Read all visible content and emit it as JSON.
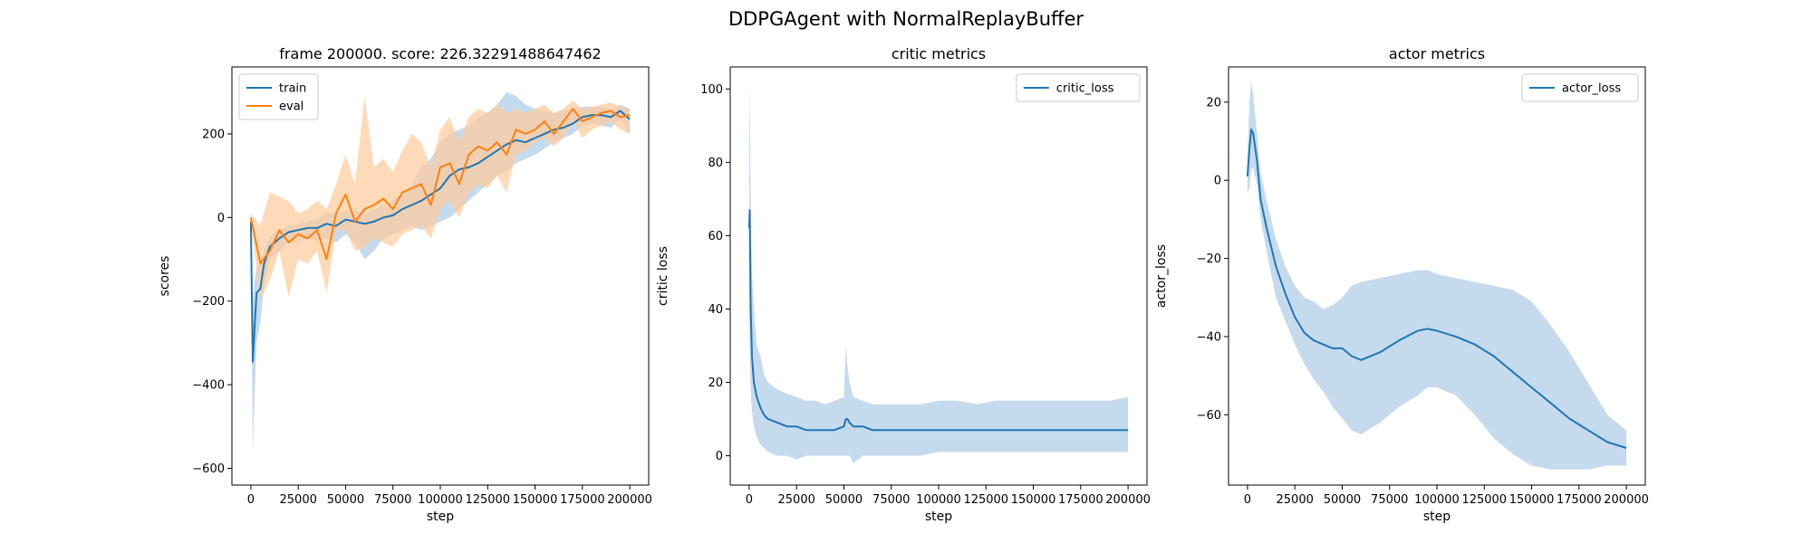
{
  "figure": {
    "title": "DDPGAgent with NormalReplayBuffer"
  },
  "colors": {
    "blue": "#1f77b4",
    "orange": "#ff7f0e",
    "blue_band": "#aecbe6",
    "orange_band": "#ffcb9a"
  },
  "chart_data": [
    {
      "type": "line",
      "title": "frame 200000. score: 226.32291488647462",
      "xlabel": "step",
      "ylabel": "scores",
      "xlim": [
        -10000,
        210000
      ],
      "ylim": [
        -640,
        360
      ],
      "xticks": [
        0,
        25000,
        50000,
        75000,
        100000,
        125000,
        150000,
        175000,
        200000
      ],
      "xtick_labels": [
        "0",
        "25000",
        "50000",
        "75000",
        "100000",
        "125000",
        "150000",
        "175000",
        "200000"
      ],
      "yticks": [
        -600,
        -400,
        -200,
        0,
        200
      ],
      "ytick_labels": [
        "−600",
        "−400",
        "−200",
        "0",
        "200"
      ],
      "legend": "top-left",
      "grid": false,
      "series": [
        {
          "name": "train",
          "color": "#1f77b4",
          "band_color": "#aecbe6",
          "x": [
            0,
            1000,
            2000,
            3000,
            5000,
            7000,
            10000,
            15000,
            20000,
            25000,
            30000,
            35000,
            40000,
            45000,
            50000,
            55000,
            60000,
            65000,
            70000,
            75000,
            80000,
            85000,
            90000,
            95000,
            100000,
            105000,
            110000,
            115000,
            120000,
            125000,
            130000,
            135000,
            140000,
            145000,
            150000,
            155000,
            160000,
            165000,
            170000,
            175000,
            180000,
            185000,
            190000,
            195000,
            200000
          ],
          "y": [
            -10,
            -345,
            -260,
            -180,
            -170,
            -110,
            -70,
            -50,
            -35,
            -30,
            -25,
            -25,
            -15,
            -20,
            -5,
            -10,
            -15,
            -10,
            0,
            5,
            20,
            30,
            40,
            55,
            70,
            100,
            115,
            120,
            130,
            145,
            160,
            175,
            185,
            180,
            190,
            200,
            210,
            215,
            225,
            240,
            245,
            245,
            240,
            255,
            235
          ],
          "upper": [
            10,
            -200,
            -150,
            -120,
            -110,
            -80,
            -45,
            -30,
            -20,
            -15,
            -10,
            -5,
            10,
            10,
            15,
            15,
            10,
            20,
            30,
            40,
            60,
            80,
            120,
            140,
            180,
            200,
            210,
            220,
            240,
            250,
            270,
            300,
            290,
            270,
            260,
            255,
            250,
            255,
            260,
            265,
            265,
            265,
            260,
            270,
            260
          ],
          "lower": [
            -30,
            -560,
            -420,
            -300,
            -250,
            -160,
            -100,
            -80,
            -60,
            -55,
            -50,
            -55,
            -50,
            -60,
            -40,
            -60,
            -100,
            -80,
            -50,
            -40,
            -30,
            -20,
            -30,
            -20,
            -10,
            0,
            20,
            40,
            60,
            80,
            100,
            110,
            130,
            140,
            150,
            165,
            180,
            190,
            200,
            220,
            225,
            220,
            215,
            235,
            200
          ]
        },
        {
          "name": "eval",
          "color": "#ff7f0e",
          "band_color": "#ffcb9a",
          "x": [
            0,
            5000,
            10000,
            15000,
            20000,
            25000,
            30000,
            35000,
            40000,
            45000,
            50000,
            55000,
            60000,
            65000,
            70000,
            75000,
            80000,
            85000,
            90000,
            95000,
            100000,
            105000,
            110000,
            115000,
            120000,
            125000,
            130000,
            135000,
            140000,
            145000,
            150000,
            155000,
            160000,
            165000,
            170000,
            175000,
            180000,
            185000,
            190000,
            195000,
            200000
          ],
          "y": [
            0,
            -110,
            -80,
            -30,
            -60,
            -40,
            -50,
            -30,
            -100,
            10,
            55,
            -10,
            20,
            30,
            45,
            20,
            60,
            70,
            80,
            30,
            120,
            130,
            80,
            150,
            170,
            160,
            180,
            150,
            210,
            200,
            210,
            230,
            200,
            230,
            260,
            230,
            240,
            250,
            255,
            240,
            245
          ],
          "upper": [
            10,
            -20,
            60,
            50,
            40,
            10,
            20,
            40,
            20,
            80,
            150,
            80,
            290,
            120,
            140,
            110,
            160,
            200,
            180,
            120,
            210,
            240,
            180,
            240,
            260,
            250,
            270,
            250,
            260,
            250,
            260,
            270,
            250,
            260,
            280,
            260,
            265,
            270,
            275,
            265,
            260
          ],
          "lower": [
            -10,
            -200,
            -150,
            -80,
            -190,
            -100,
            -110,
            -80,
            -180,
            -30,
            -30,
            -80,
            -70,
            -50,
            -60,
            -70,
            -40,
            -30,
            -20,
            -50,
            20,
            40,
            0,
            60,
            80,
            70,
            100,
            60,
            150,
            160,
            180,
            190,
            170,
            190,
            230,
            190,
            210,
            220,
            230,
            210,
            200
          ]
        }
      ]
    },
    {
      "type": "line",
      "title": "critic metrics",
      "xlabel": "step",
      "ylabel": "critic loss",
      "xlim": [
        -10000,
        210000
      ],
      "ylim": [
        -8,
        106
      ],
      "xticks": [
        0,
        25000,
        50000,
        75000,
        100000,
        125000,
        150000,
        175000,
        200000
      ],
      "xtick_labels": [
        "0",
        "25000",
        "50000",
        "75000",
        "100000",
        "125000",
        "150000",
        "175000",
        "200000"
      ],
      "yticks": [
        0,
        20,
        40,
        60,
        80,
        100
      ],
      "ytick_labels": [
        "0",
        "20",
        "40",
        "60",
        "80",
        "100"
      ],
      "legend": "top-right",
      "grid": false,
      "series": [
        {
          "name": "critic_loss",
          "color": "#1f77b4",
          "band_color": "#aecbe6",
          "x": [
            0,
            300,
            800,
            1500,
            2500,
            4000,
            6000,
            8000,
            10000,
            15000,
            20000,
            25000,
            30000,
            35000,
            40000,
            45000,
            50000,
            51000,
            52000,
            53000,
            55000,
            60000,
            65000,
            70000,
            75000,
            80000,
            90000,
            100000,
            110000,
            120000,
            130000,
            140000,
            150000,
            160000,
            170000,
            180000,
            190000,
            200000
          ],
          "y": [
            62,
            67,
            40,
            27,
            20,
            16,
            13,
            11,
            10,
            9,
            8,
            8,
            7,
            7,
            7,
            7,
            8,
            10,
            10,
            9,
            8,
            8,
            7,
            7,
            7,
            7,
            7,
            7,
            7,
            7,
            7,
            7,
            7,
            7,
            7,
            7,
            7,
            7
          ],
          "upper": [
            80,
            101,
            70,
            50,
            40,
            30,
            27,
            22,
            20,
            18,
            17,
            16,
            15,
            15,
            14,
            15,
            16,
            30,
            24,
            20,
            16,
            15,
            14,
            14,
            14,
            14,
            14,
            15,
            15,
            14,
            15,
            15,
            15,
            15,
            15,
            15,
            15,
            16
          ],
          "lower": [
            40,
            30,
            18,
            12,
            8,
            5,
            3,
            2,
            1,
            0,
            0,
            -1,
            0,
            0,
            0,
            0,
            0,
            0,
            0,
            0,
            -2,
            0,
            0,
            0,
            0,
            0,
            0,
            1,
            1,
            1,
            1,
            1,
            1,
            1,
            1,
            1,
            1,
            1
          ]
        }
      ]
    },
    {
      "type": "line",
      "title": "actor metrics",
      "xlabel": "step",
      "ylabel": "actor_loss",
      "xlim": [
        -10000,
        210000
      ],
      "ylim": [
        -78,
        29
      ],
      "xticks": [
        0,
        25000,
        50000,
        75000,
        100000,
        125000,
        150000,
        175000,
        200000
      ],
      "xtick_labels": [
        "0",
        "25000",
        "50000",
        "75000",
        "100000",
        "125000",
        "150000",
        "175000",
        "200000"
      ],
      "yticks": [
        -60,
        -40,
        -20,
        0,
        20
      ],
      "ytick_labels": [
        "−60",
        "−40",
        "−20",
        "0",
        "20"
      ],
      "legend": "top-right",
      "grid": false,
      "series": [
        {
          "name": "actor_loss",
          "color": "#1f77b4",
          "band_color": "#aecbe6",
          "x": [
            0,
            1000,
            2000,
            3000,
            5000,
            7000,
            10000,
            15000,
            20000,
            25000,
            30000,
            35000,
            40000,
            45000,
            50000,
            55000,
            60000,
            70000,
            80000,
            90000,
            95000,
            100000,
            110000,
            120000,
            130000,
            140000,
            150000,
            160000,
            170000,
            180000,
            190000,
            200000
          ],
          "y": [
            1,
            8,
            13,
            12,
            5,
            -5,
            -12,
            -22,
            -29,
            -35,
            -39,
            -41,
            -42,
            -43,
            -43,
            -45,
            -46,
            -44,
            -41,
            -38.5,
            -38,
            -38.5,
            -40,
            -42,
            -45,
            -49,
            -53,
            -57,
            -61,
            -64,
            -67,
            -68.5
          ],
          "upper": [
            5,
            20,
            25,
            22,
            12,
            2,
            -5,
            -15,
            -22,
            -27,
            -30,
            -31,
            -33,
            -32,
            -30,
            -27,
            -26,
            -25,
            -24,
            -23,
            -23,
            -24,
            -25,
            -26,
            -27,
            -28,
            -31,
            -37,
            -44,
            -52,
            -60,
            -64
          ],
          "lower": [
            -3,
            -2,
            3,
            3,
            -1,
            -10,
            -18,
            -30,
            -36,
            -42,
            -47,
            -51,
            -54,
            -58,
            -61,
            -64,
            -65,
            -62,
            -58,
            -55,
            -53,
            -53,
            -55,
            -60,
            -66,
            -70,
            -73,
            -74,
            -74,
            -74,
            -73,
            -73
          ]
        }
      ]
    }
  ]
}
